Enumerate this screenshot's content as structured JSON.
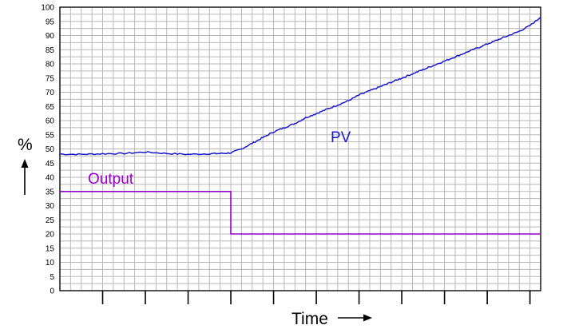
{
  "chart_data": {
    "type": "line",
    "ylabel": "%",
    "xlabel": "Time",
    "ylim": [
      0,
      100
    ],
    "xlim": [
      0,
      22.5
    ],
    "y_ticks": [
      "0",
      "5",
      "10",
      "15",
      "20",
      "25",
      "30",
      "35",
      "40",
      "45",
      "50",
      "55",
      "60",
      "65",
      "70",
      "75",
      "80",
      "85",
      "90",
      "95",
      "100"
    ],
    "x_major_ticks": [
      2,
      4,
      6,
      8,
      10,
      12,
      14,
      16,
      18,
      20,
      22
    ],
    "grid": true,
    "series": [
      {
        "name": "PV",
        "color": "#1a1acc",
        "x": [
          0,
          1,
          2,
          3,
          4,
          5,
          6,
          7,
          7.5,
          8,
          8.5,
          9,
          9.5,
          10,
          10.5,
          11,
          11.5,
          12,
          12.5,
          13,
          13.5,
          14,
          14.5,
          15,
          15.5,
          16,
          16.5,
          17,
          17.5,
          18,
          18.5,
          19,
          19.5,
          20,
          20.5,
          21,
          21.5,
          22,
          22.5
        ],
        "values": [
          48.2,
          48.1,
          48.3,
          48.4,
          48.9,
          48.4,
          48.1,
          48.3,
          48.4,
          48.6,
          50.0,
          52.0,
          54.0,
          56.0,
          57.5,
          59.0,
          61.0,
          62.5,
          64.0,
          65.5,
          67.0,
          69.0,
          70.5,
          72.0,
          73.5,
          75.0,
          76.5,
          78.0,
          79.5,
          81.0,
          82.5,
          84.0,
          85.5,
          87.0,
          88.5,
          90.0,
          91.5,
          93.5,
          96.5
        ]
      },
      {
        "name": "Output",
        "color": "#9900cc",
        "x": [
          0,
          8,
          8,
          22.5
        ],
        "values": [
          35,
          35,
          20,
          20
        ]
      }
    ]
  }
}
